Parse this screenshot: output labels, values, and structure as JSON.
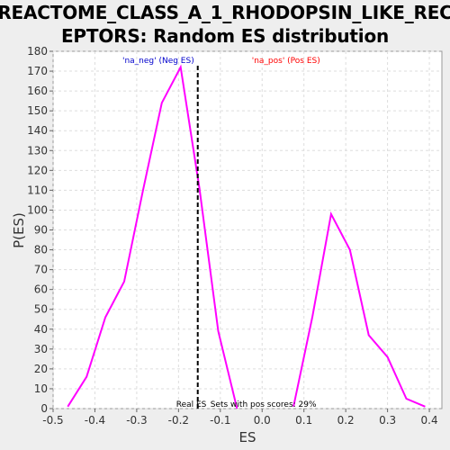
{
  "title_line1": "REACTOME_CLASS_A_1_RHODOPSIN_LIKE_REC",
  "title_line2": "EPTORS: Random ES distribution",
  "chart_data": {
    "type": "line",
    "title": "REACTOME_CLASS_A_1_RHODOPSIN_LIKE_RECEPTORS: Random ES distribution",
    "xlabel": "ES",
    "ylabel": "P(ES)",
    "xlim": [
      -0.5,
      0.43
    ],
    "ylim": [
      0,
      180
    ],
    "x_ticks": [
      -0.5,
      -0.4,
      -0.3,
      -0.2,
      -0.1,
      0.0,
      0.1,
      0.2,
      0.3,
      0.4
    ],
    "x_tick_labels": [
      "-0.5",
      "-0.4",
      "-0.3",
      "-0.2",
      "-0.1",
      "0.0",
      "0.1",
      "0.2",
      "0.3",
      "0.4"
    ],
    "y_ticks": [
      0,
      10,
      20,
      30,
      40,
      50,
      60,
      70,
      80,
      90,
      100,
      110,
      120,
      130,
      140,
      150,
      160,
      170,
      180
    ],
    "grid": true,
    "series": [
      {
        "name": "'na_neg' (Neg ES)",
        "color": "#ff00ff",
        "label_color": "#0000cc",
        "x": [
          -0.465,
          -0.42,
          -0.375,
          -0.33,
          -0.285,
          -0.24,
          -0.195,
          -0.15,
          -0.105,
          -0.06
        ],
        "y": [
          1,
          16,
          46,
          64,
          110,
          154,
          172,
          111,
          39,
          0
        ]
      },
      {
        "name": "'na_pos' (Pos ES)",
        "color": "#ff00ff",
        "label_color": "#ff0000",
        "x": [
          0.075,
          0.12,
          0.165,
          0.21,
          0.255,
          0.3,
          0.345,
          0.39
        ],
        "y": [
          1,
          46,
          98,
          80,
          37,
          26,
          5,
          1
        ]
      }
    ],
    "real_es": -0.154,
    "real_es_label": "Real ES",
    "annotation": "Sets with pos scores: 29%"
  }
}
